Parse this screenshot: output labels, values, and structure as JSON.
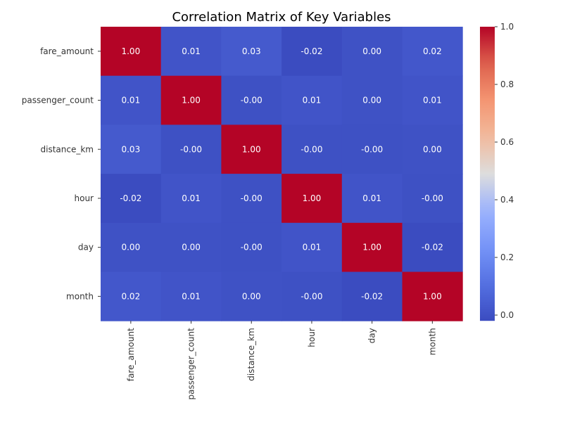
{
  "chart_data": {
    "type": "heatmap",
    "title": "Correlation Matrix of Key Variables",
    "xlabel": "",
    "ylabel": "",
    "x_categories": [
      "fare_amount",
      "passenger_count",
      "distance_km",
      "hour",
      "day",
      "month"
    ],
    "y_categories": [
      "fare_amount",
      "passenger_count",
      "distance_km",
      "hour",
      "day",
      "month"
    ],
    "values": [
      [
        1.0,
        0.01,
        0.03,
        -0.02,
        0.0,
        0.02
      ],
      [
        0.01,
        1.0,
        -0.004,
        0.01,
        0.0,
        0.01
      ],
      [
        0.03,
        -0.004,
        1.0,
        -0.004,
        -0.004,
        0.0
      ],
      [
        -0.02,
        0.01,
        -0.004,
        1.0,
        0.01,
        -0.004
      ],
      [
        0.0,
        0.0,
        -0.004,
        0.01,
        1.0,
        -0.02
      ],
      [
        0.02,
        0.01,
        0.0,
        -0.004,
        -0.02,
        1.0
      ]
    ],
    "annotation_format": "0.00",
    "colormap": "coolwarm",
    "colorbar": {
      "range": [
        -0.02,
        1.0
      ],
      "ticks": [
        0.0,
        0.2,
        0.4,
        0.6,
        0.8,
        1.0
      ],
      "tick_labels": [
        "0.0",
        "0.2",
        "0.4",
        "0.6",
        "0.8",
        "1.0"
      ]
    },
    "grid": false,
    "legend": "colorbar-right"
  }
}
